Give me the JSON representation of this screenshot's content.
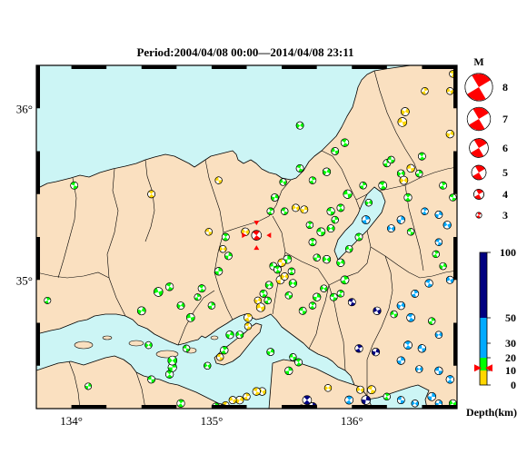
{
  "title": "Period:2004/04/08 00:00––2014/04/08 23:11",
  "map": {
    "lon_range": [
      133.75,
      136.75
    ],
    "lat_range": [
      34.25,
      36.25
    ],
    "lon_ticks": [
      {
        "value": 134,
        "label": "134°"
      },
      {
        "value": 135,
        "label": "135°"
      },
      {
        "value": 136,
        "label": "136°"
      }
    ],
    "lat_ticks": [
      {
        "value": 36,
        "label": "36°"
      },
      {
        "value": 35,
        "label": "35°"
      }
    ],
    "colors": {
      "sea": "#ccf5f5",
      "land": "#fae0c0",
      "border": "#000000"
    }
  },
  "magnitude_legend": {
    "title": "M",
    "items": [
      {
        "m": 8,
        "label": "8"
      },
      {
        "m": 7,
        "label": "7"
      },
      {
        "m": 6,
        "label": "6"
      },
      {
        "m": 5,
        "label": "5"
      },
      {
        "m": 4,
        "label": "4"
      },
      {
        "m": 3,
        "label": "3"
      }
    ],
    "color": "#ff0000"
  },
  "depth_legend": {
    "title": "Depth(km)",
    "bands": [
      {
        "from": 0,
        "to": 10,
        "color": "#ffd700"
      },
      {
        "from": 10,
        "to": 20,
        "color": "#00ff00"
      },
      {
        "from": 20,
        "to": 50,
        "color": "#00aaff"
      },
      {
        "from": 50,
        "to": 100,
        "color": "#000080"
      }
    ],
    "ticks": [
      {
        "value": 100,
        "label": "100"
      },
      {
        "value": 50,
        "label": "50"
      },
      {
        "value": 30,
        "label": "30"
      },
      {
        "value": 20,
        "label": "20"
      },
      {
        "value": 10,
        "label": "10"
      },
      {
        "value": 0,
        "label": "0"
      }
    ],
    "marker_depth": 12
  },
  "highlighted_event": {
    "lon": 135.32,
    "lat": 35.26,
    "mag": 4.0,
    "depth": 12
  },
  "events": [
    [
      134.02,
      35.55,
      3.4,
      12
    ],
    [
      133.83,
      34.88,
      3.2,
      12
    ],
    [
      134.5,
      34.82,
      3.6,
      12
    ],
    [
      134.62,
      34.93,
      3.8,
      15
    ],
    [
      134.7,
      34.96,
      3.5,
      15
    ],
    [
      134.9,
      34.9,
      3.2,
      12
    ],
    [
      134.78,
      34.85,
      3.4,
      12
    ],
    [
      134.85,
      34.78,
      3.6,
      15
    ],
    [
      134.93,
      34.95,
      3.4,
      12
    ],
    [
      135.0,
      34.85,
      3.3,
      15
    ],
    [
      134.55,
      34.62,
      3.3,
      15
    ],
    [
      134.57,
      34.42,
      3.4,
      15
    ],
    [
      134.7,
      34.45,
      3.5,
      15
    ],
    [
      134.72,
      34.49,
      3.7,
      12
    ],
    [
      134.72,
      34.53,
      3.8,
      12
    ],
    [
      134.82,
      34.6,
      3.3,
      12
    ],
    [
      134.78,
      34.28,
      3.5,
      15
    ],
    [
      134.12,
      34.38,
      3.2,
      15
    ],
    [
      134.97,
      34.5,
      3.3,
      15
    ],
    [
      135.06,
      34.55,
      3.3,
      8
    ],
    [
      135.09,
      34.59,
      3.5,
      15
    ],
    [
      135.13,
      34.68,
      3.5,
      15
    ],
    [
      135.2,
      34.68,
      3.4,
      12
    ],
    [
      135.26,
      34.73,
      3.3,
      8
    ],
    [
      135.26,
      34.78,
      3.6,
      8
    ],
    [
      135.33,
      34.88,
      3.3,
      8
    ],
    [
      135.35,
      34.84,
      3.7,
      8
    ],
    [
      135.37,
      34.92,
      3.4,
      12
    ],
    [
      135.4,
      34.88,
      3.3,
      12
    ],
    [
      135.41,
      34.97,
      3.4,
      15
    ],
    [
      135.44,
      35.08,
      3.4,
      12
    ],
    [
      135.47,
      35.06,
      3.4,
      15
    ],
    [
      135.49,
      35.0,
      3.6,
      8
    ],
    [
      135.52,
      35.02,
      3.4,
      8
    ],
    [
      135.55,
      34.91,
      3.3,
      12
    ],
    [
      135.57,
      35.05,
      3.3,
      15
    ],
    [
      135.54,
      35.12,
      3.6,
      15
    ],
    [
      135.58,
      34.98,
      3.5,
      12
    ],
    [
      135.65,
      34.82,
      3.4,
      15
    ],
    [
      135.72,
      34.85,
      3.3,
      15
    ],
    [
      135.75,
      34.9,
      3.5,
      12
    ],
    [
      135.8,
      34.95,
      3.3,
      15
    ],
    [
      135.87,
      34.9,
      3.4,
      15
    ],
    [
      135.92,
      34.92,
      3.3,
      15
    ],
    [
      135.42,
      34.58,
      3.4,
      15
    ],
    [
      135.36,
      34.35,
      3.5,
      8
    ],
    [
      135.32,
      34.35,
      3.5,
      8
    ],
    [
      135.25,
      34.32,
      3.3,
      8
    ],
    [
      135.2,
      34.3,
      3.5,
      8
    ],
    [
      135.15,
      34.3,
      3.4,
      8
    ],
    [
      135.1,
      34.27,
      3.3,
      8
    ],
    [
      135.03,
      34.26,
      3.5,
      15
    ],
    [
      135.08,
      34.25,
      3.6,
      8
    ],
    [
      135.58,
      34.55,
      3.3,
      15
    ],
    [
      135.62,
      34.52,
      3.4,
      12
    ],
    [
      135.55,
      34.47,
      3.5,
      15
    ],
    [
      135.83,
      34.37,
      3.3,
      8
    ],
    [
      135.82,
      34.2,
      3.5,
      8
    ],
    [
      135.68,
      34.3,
      3.8,
      80
    ],
    [
      135.72,
      34.26,
      3.7,
      80
    ],
    [
      135.78,
      34.22,
      3.7,
      80
    ],
    [
      135.64,
      34.25,
      3.4,
      80
    ],
    [
      135.98,
      34.3,
      3.6,
      30
    ],
    [
      136.1,
      34.3,
      3.8,
      80
    ],
    [
      136.06,
      34.36,
      3.4,
      8
    ],
    [
      136.14,
      34.36,
      3.6,
      8
    ],
    [
      136.05,
      34.6,
      3.5,
      80
    ],
    [
      136.17,
      34.58,
      3.5,
      80
    ],
    [
      136.18,
      34.82,
      3.5,
      80
    ],
    [
      136.0,
      34.87,
      3.4,
      80
    ],
    [
      135.95,
      35.0,
      3.6,
      15
    ],
    [
      135.92,
      35.1,
      3.5,
      15
    ],
    [
      135.98,
      35.18,
      3.3,
      15
    ],
    [
      136.05,
      35.25,
      3.4,
      15
    ],
    [
      136.1,
      35.35,
      3.6,
      30
    ],
    [
      136.12,
      35.45,
      3.3,
      15
    ],
    [
      135.97,
      35.5,
      3.7,
      12
    ],
    [
      135.92,
      35.42,
      3.4,
      12
    ],
    [
      135.88,
      35.35,
      3.3,
      12
    ],
    [
      135.85,
      35.3,
      3.4,
      15
    ],
    [
      135.78,
      35.28,
      3.6,
      15
    ],
    [
      135.72,
      35.22,
      3.4,
      15
    ],
    [
      135.75,
      35.13,
      3.3,
      15
    ],
    [
      135.82,
      35.12,
      3.5,
      15
    ],
    [
      135.85,
      35.4,
      3.5,
      15
    ],
    [
      135.7,
      35.32,
      3.3,
      12
    ],
    [
      135.66,
      35.41,
      3.4,
      8
    ],
    [
      135.6,
      35.42,
      3.4,
      8
    ],
    [
      135.52,
      35.4,
      3.3,
      15
    ],
    [
      135.42,
      35.4,
      3.3,
      15
    ],
    [
      135.45,
      35.48,
      3.4,
      15
    ],
    [
      135.51,
      35.57,
      3.3,
      15
    ],
    [
      135.63,
      35.65,
      3.4,
      15
    ],
    [
      135.72,
      35.58,
      3.3,
      15
    ],
    [
      135.82,
      35.63,
      3.5,
      15
    ],
    [
      135.88,
      35.75,
      3.4,
      15
    ],
    [
      135.95,
      35.8,
      3.5,
      12
    ],
    [
      136.25,
      35.68,
      3.4,
      15
    ],
    [
      136.35,
      35.62,
      3.4,
      12
    ],
    [
      136.42,
      35.65,
      3.5,
      8
    ],
    [
      136.5,
      35.72,
      3.4,
      15
    ],
    [
      136.48,
      35.62,
      3.3,
      15
    ],
    [
      136.37,
      35.58,
      3.6,
      8
    ],
    [
      136.28,
      35.7,
      3.3,
      15
    ],
    [
      136.4,
      35.48,
      3.5,
      12
    ],
    [
      136.35,
      35.35,
      3.5,
      30
    ],
    [
      136.28,
      35.3,
      3.4,
      30
    ],
    [
      136.42,
      35.28,
      3.3,
      15
    ],
    [
      136.52,
      35.4,
      3.3,
      30
    ],
    [
      136.62,
      35.38,
      3.4,
      30
    ],
    [
      136.68,
      35.32,
      3.5,
      30
    ],
    [
      136.62,
      35.22,
      3.3,
      30
    ],
    [
      136.6,
      35.15,
      3.3,
      15
    ],
    [
      136.65,
      35.08,
      3.3,
      15
    ],
    [
      136.7,
      35.0,
      3.4,
      30
    ],
    [
      136.55,
      34.98,
      3.5,
      30
    ],
    [
      136.45,
      34.92,
      3.4,
      30
    ],
    [
      136.35,
      34.85,
      3.5,
      30
    ],
    [
      136.3,
      34.8,
      3.3,
      15
    ],
    [
      136.42,
      34.78,
      3.6,
      30
    ],
    [
      136.57,
      34.76,
      3.3,
      15
    ],
    [
      136.62,
      34.68,
      3.3,
      30
    ],
    [
      136.5,
      34.6,
      3.5,
      30
    ],
    [
      136.4,
      34.62,
      3.6,
      30
    ],
    [
      136.35,
      34.53,
      3.5,
      30
    ],
    [
      136.48,
      34.48,
      3.3,
      30
    ],
    [
      136.62,
      34.47,
      3.5,
      30
    ],
    [
      136.7,
      34.42,
      3.5,
      30
    ],
    [
      136.57,
      34.32,
      3.6,
      30
    ],
    [
      136.45,
      34.28,
      3.3,
      30
    ],
    [
      136.35,
      34.3,
      3.4,
      30
    ],
    [
      136.25,
      34.32,
      3.3,
      15
    ],
    [
      136.62,
      34.28,
      3.3,
      30
    ],
    [
      136.72,
      34.28,
      3.4,
      15
    ],
    [
      136.72,
      35.48,
      3.3,
      15
    ],
    [
      136.65,
      35.55,
      3.4,
      15
    ],
    [
      136.7,
      35.85,
      3.5,
      8
    ],
    [
      136.7,
      36.1,
      3.3,
      8
    ],
    [
      136.72,
      36.2,
      3.3,
      8
    ],
    [
      136.52,
      36.1,
      3.3,
      8
    ],
    [
      136.38,
      35.98,
      3.6,
      8
    ],
    [
      136.36,
      35.92,
      3.8,
      8
    ],
    [
      136.22,
      35.55,
      3.6,
      12
    ],
    [
      136.08,
      35.55,
      3.3,
      12
    ],
    [
      135.63,
      35.9,
      3.4,
      15
    ],
    [
      135.05,
      35.58,
      3.3,
      8
    ],
    [
      134.57,
      35.5,
      3.4,
      8
    ],
    [
      135.05,
      35.05,
      3.5,
      15
    ],
    [
      135.08,
      35.18,
      3.3,
      8
    ],
    [
      134.98,
      35.28,
      3.3,
      8
    ],
    [
      135.1,
      35.25,
      3.4,
      15
    ],
    [
      135.12,
      35.14,
      3.4,
      15
    ],
    [
      135.24,
      35.28,
      3.5,
      8
    ],
    [
      135.5,
      35.1,
      3.5,
      8
    ]
  ]
}
